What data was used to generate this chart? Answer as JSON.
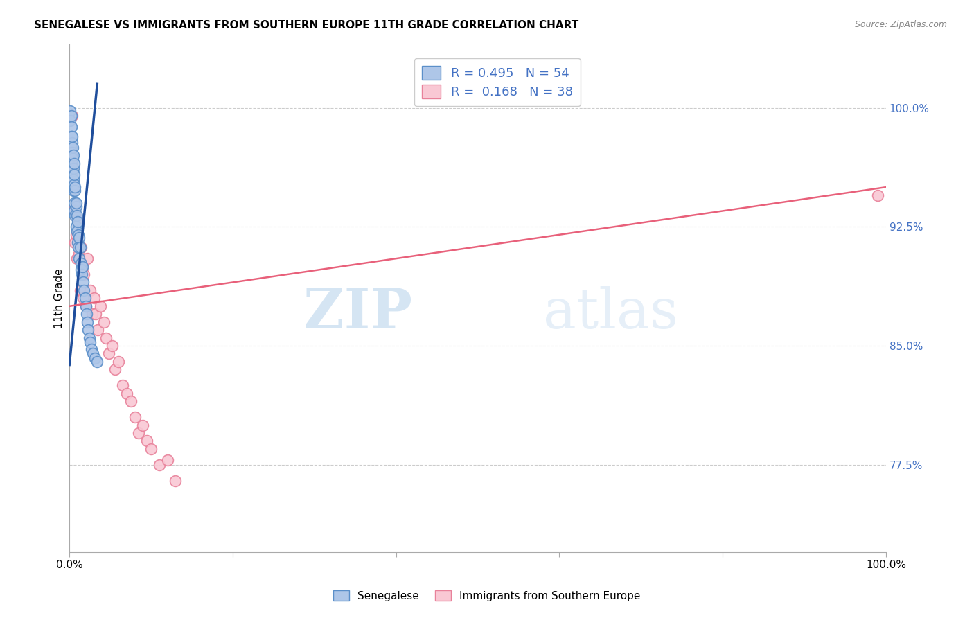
{
  "title": "SENEGALESE VS IMMIGRANTS FROM SOUTHERN EUROPE 11TH GRADE CORRELATION CHART",
  "source": "Source: ZipAtlas.com",
  "ylabel": "11th Grade",
  "y_ticks": [
    77.5,
    85.0,
    92.5,
    100.0
  ],
  "y_tick_labels": [
    "77.5%",
    "85.0%",
    "92.5%",
    "100.0%"
  ],
  "xlim": [
    0.0,
    1.0
  ],
  "ylim": [
    72.0,
    104.0
  ],
  "blue_R": 0.495,
  "blue_N": 54,
  "pink_R": 0.168,
  "pink_N": 38,
  "blue_fill_color": "#aec6e8",
  "blue_edge_color": "#5b8fc9",
  "pink_fill_color": "#f9c8d4",
  "pink_edge_color": "#e8819a",
  "blue_line_color": "#1f4e9c",
  "pink_line_color": "#e8607a",
  "legend_label_blue": "Senegalese",
  "legend_label_pink": "Immigrants from Southern Europe",
  "blue_scatter_x": [
    0.001,
    0.001,
    0.002,
    0.002,
    0.002,
    0.002,
    0.003,
    0.003,
    0.003,
    0.003,
    0.004,
    0.004,
    0.004,
    0.005,
    0.005,
    0.005,
    0.005,
    0.006,
    0.006,
    0.006,
    0.006,
    0.006,
    0.007,
    0.007,
    0.007,
    0.008,
    0.008,
    0.008,
    0.009,
    0.009,
    0.01,
    0.01,
    0.011,
    0.011,
    0.012,
    0.012,
    0.013,
    0.014,
    0.014,
    0.015,
    0.016,
    0.017,
    0.018,
    0.019,
    0.02,
    0.021,
    0.022,
    0.023,
    0.024,
    0.025,
    0.027,
    0.029,
    0.031,
    0.034
  ],
  "blue_scatter_y": [
    99.8,
    99.2,
    98.8,
    99.5,
    98.2,
    97.5,
    97.8,
    97.2,
    96.5,
    98.2,
    96.0,
    97.5,
    96.8,
    95.5,
    96.2,
    94.8,
    97.0,
    95.2,
    96.5,
    94.0,
    95.8,
    93.5,
    94.8,
    93.2,
    95.0,
    93.8,
    92.5,
    94.0,
    93.2,
    92.2,
    92.8,
    91.5,
    92.0,
    91.2,
    91.8,
    90.5,
    91.2,
    90.2,
    89.8,
    89.5,
    90.0,
    89.0,
    88.5,
    88.0,
    87.5,
    87.0,
    86.5,
    86.0,
    85.5,
    85.2,
    84.8,
    84.5,
    84.2,
    84.0
  ],
  "pink_scatter_x": [
    0.003,
    0.005,
    0.007,
    0.008,
    0.009,
    0.01,
    0.012,
    0.013,
    0.014,
    0.016,
    0.017,
    0.018,
    0.02,
    0.022,
    0.025,
    0.028,
    0.03,
    0.032,
    0.035,
    0.038,
    0.042,
    0.045,
    0.048,
    0.052,
    0.056,
    0.06,
    0.065,
    0.07,
    0.075,
    0.08,
    0.085,
    0.09,
    0.095,
    0.1,
    0.11,
    0.12,
    0.13,
    0.99
  ],
  "pink_scatter_y": [
    99.5,
    93.5,
    91.5,
    92.0,
    90.5,
    93.0,
    90.8,
    88.5,
    91.2,
    90.0,
    88.0,
    89.5,
    87.5,
    90.5,
    88.5,
    87.0,
    88.0,
    87.0,
    86.0,
    87.5,
    86.5,
    85.5,
    84.5,
    85.0,
    83.5,
    84.0,
    82.5,
    82.0,
    81.5,
    80.5,
    79.5,
    80.0,
    79.0,
    78.5,
    77.5,
    77.8,
    76.5,
    94.5
  ],
  "blue_line_x": [
    0.0,
    0.034
  ],
  "blue_line_y": [
    83.8,
    101.5
  ],
  "pink_line_x": [
    0.0,
    1.0
  ],
  "pink_line_y": [
    87.5,
    95.0
  ]
}
